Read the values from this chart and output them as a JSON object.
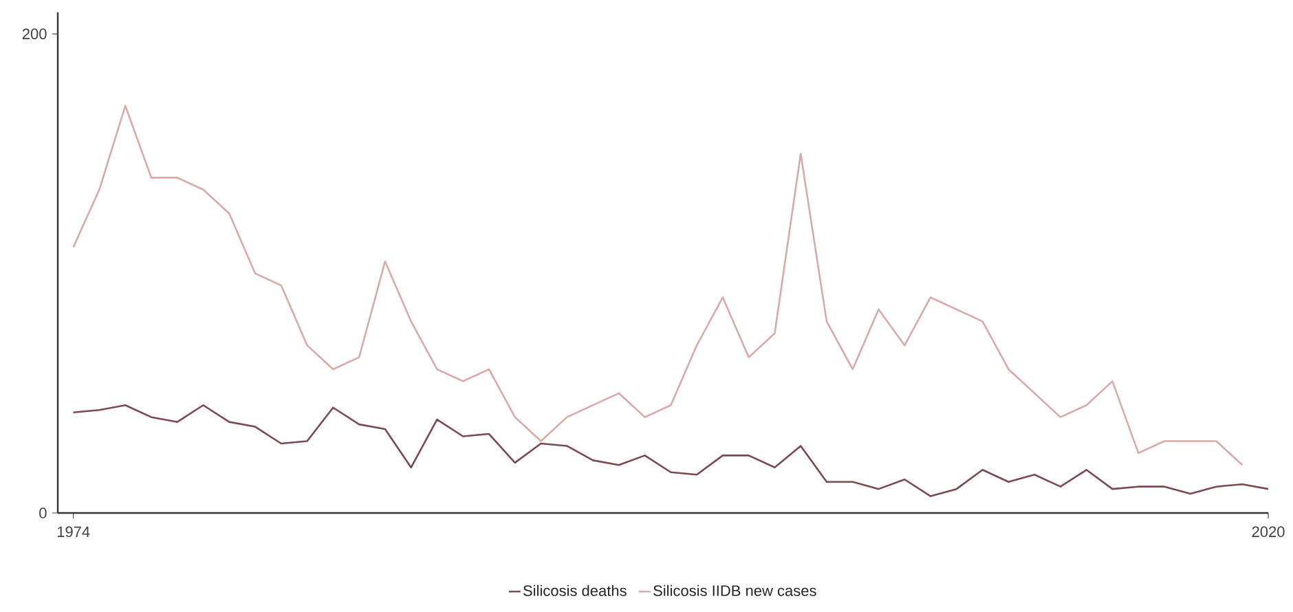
{
  "chart_data": {
    "type": "line",
    "x": [
      1974,
      1975,
      1976,
      1977,
      1978,
      1979,
      1980,
      1981,
      1982,
      1983,
      1984,
      1985,
      1986,
      1987,
      1988,
      1989,
      1990,
      1991,
      1992,
      1993,
      1994,
      1995,
      1996,
      1997,
      1998,
      1999,
      2000,
      2001,
      2002,
      2003,
      2004,
      2005,
      2006,
      2007,
      2008,
      2009,
      2010,
      2011,
      2012,
      2013,
      2014,
      2015,
      2016,
      2017,
      2018,
      2019,
      2020
    ],
    "series": [
      {
        "name": "Silicosis deaths",
        "color": "#7b4a50",
        "values": [
          42,
          43,
          45,
          40,
          38,
          45,
          38,
          36,
          29,
          30,
          44,
          37,
          35,
          19,
          39,
          32,
          33,
          21,
          29,
          28,
          22,
          20,
          24,
          17,
          16,
          24,
          24,
          19,
          28,
          13,
          13,
          10,
          14,
          7,
          10,
          18,
          13,
          16,
          11,
          18,
          10,
          11,
          11,
          8,
          11,
          12,
          10
        ]
      },
      {
        "name": "Silicosis IIDB new cases",
        "color": "#d8aaa8",
        "values": [
          111,
          135,
          170,
          140,
          140,
          135,
          125,
          100,
          95,
          70,
          60,
          65,
          105,
          80,
          60,
          55,
          60,
          40,
          30,
          40,
          45,
          50,
          40,
          45,
          70,
          90,
          65,
          75,
          150,
          80,
          60,
          85,
          70,
          90,
          85,
          80,
          60,
          50,
          40,
          45,
          55,
          25,
          30,
          30,
          30,
          20,
          null
        ]
      }
    ],
    "xlim": [
      1973.4,
      2020
    ],
    "xticks": [
      1974,
      2020
    ],
    "ylim": [
      0,
      209
    ],
    "yticks": [
      0,
      200
    ],
    "legend": "bottom",
    "grid": false
  }
}
